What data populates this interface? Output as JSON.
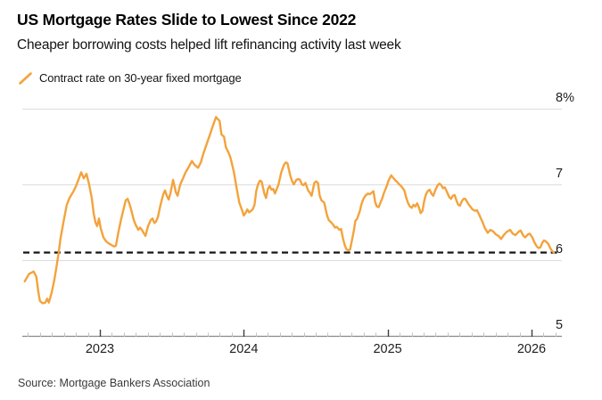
{
  "header": {
    "title": "US Mortgage Rates Slide to Lowest Since 2022",
    "subtitle": "Cheaper borrowing costs helped lift refinancing activity last week"
  },
  "source": "Source: Mortgage Bankers Association",
  "colors": {
    "series": "#F3A33C",
    "reference_line": "#141414",
    "grid": "#DCDCDC",
    "axis_line": "#8A8A8A",
    "minor_tick": "#C3C3C3",
    "major_tick": "#3F3F3F"
  },
  "chart_data": {
    "type": "line",
    "title": "US Mortgage Rates Slide to Lowest Since 2022",
    "subtitle": "Cheaper borrowing costs helped lift refinancing activity last week",
    "legend_position": "top-left",
    "grid": "horizontal",
    "y_axis": {
      "unit": "%",
      "range": [
        5,
        8
      ],
      "ticks": [
        5,
        6,
        7,
        8
      ],
      "tick_labels": [
        "5",
        "6",
        "7",
        "8%"
      ],
      "side": "right"
    },
    "x_axis": {
      "range": [
        2022.461,
        2026.211
      ],
      "ticks": [
        2023,
        2024,
        2025,
        2026
      ],
      "tick_labels": [
        "2023",
        "2024",
        "2025",
        "2026"
      ],
      "minor_tick_interval": "month"
    },
    "reference_line": {
      "value": 6.1,
      "style": "dashed",
      "color": "#141414"
    },
    "series": [
      {
        "name": "Contract rate on 30-year fixed mortgage",
        "color": "#F3A33C",
        "points": [
          [
            2022.478,
            5.72
          ],
          [
            2022.509,
            5.82
          ],
          [
            2022.54,
            5.85
          ],
          [
            2022.559,
            5.78
          ],
          [
            2022.571,
            5.6
          ],
          [
            2022.584,
            5.46
          ],
          [
            2022.603,
            5.43
          ],
          [
            2022.621,
            5.44
          ],
          [
            2022.634,
            5.49
          ],
          [
            2022.646,
            5.44
          ],
          [
            2022.665,
            5.57
          ],
          [
            2022.683,
            5.73
          ],
          [
            2022.696,
            5.88
          ],
          [
            2022.714,
            6.1
          ],
          [
            2022.727,
            6.29
          ],
          [
            2022.752,
            6.55
          ],
          [
            2022.77,
            6.73
          ],
          [
            2022.789,
            6.82
          ],
          [
            2022.814,
            6.9
          ],
          [
            2022.832,
            6.97
          ],
          [
            2022.851,
            7.06
          ],
          [
            2022.87,
            7.16
          ],
          [
            2022.888,
            7.08
          ],
          [
            2022.907,
            7.14
          ],
          [
            2022.925,
            7.0
          ],
          [
            2022.944,
            6.82
          ],
          [
            2022.957,
            6.62
          ],
          [
            2022.969,
            6.5
          ],
          [
            2022.981,
            6.45
          ],
          [
            2022.994,
            6.55
          ],
          [
            2023.006,
            6.42
          ],
          [
            2023.025,
            6.3
          ],
          [
            2023.043,
            6.25
          ],
          [
            2023.062,
            6.22
          ],
          [
            2023.081,
            6.2
          ],
          [
            2023.099,
            6.18
          ],
          [
            2023.112,
            6.19
          ],
          [
            2023.13,
            6.38
          ],
          [
            2023.149,
            6.55
          ],
          [
            2023.168,
            6.7
          ],
          [
            2023.18,
            6.79
          ],
          [
            2023.193,
            6.81
          ],
          [
            2023.205,
            6.75
          ],
          [
            2023.217,
            6.67
          ],
          [
            2023.236,
            6.53
          ],
          [
            2023.248,
            6.47
          ],
          [
            2023.267,
            6.4
          ],
          [
            2023.28,
            6.43
          ],
          [
            2023.292,
            6.4
          ],
          [
            2023.304,
            6.36
          ],
          [
            2023.317,
            6.32
          ],
          [
            2023.335,
            6.45
          ],
          [
            2023.354,
            6.53
          ],
          [
            2023.366,
            6.55
          ],
          [
            2023.379,
            6.49
          ],
          [
            2023.391,
            6.51
          ],
          [
            2023.404,
            6.57
          ],
          [
            2023.422,
            6.73
          ],
          [
            2023.441,
            6.87
          ],
          [
            2023.453,
            6.92
          ],
          [
            2023.466,
            6.85
          ],
          [
            2023.478,
            6.8
          ],
          [
            2023.491,
            6.89
          ],
          [
            2023.509,
            7.06
          ],
          [
            2023.528,
            6.9
          ],
          [
            2023.54,
            6.85
          ],
          [
            2023.559,
            7.0
          ],
          [
            2023.578,
            7.08
          ],
          [
            2023.596,
            7.16
          ],
          [
            2023.621,
            7.24
          ],
          [
            2023.64,
            7.31
          ],
          [
            2023.658,
            7.26
          ],
          [
            2023.683,
            7.22
          ],
          [
            2023.702,
            7.29
          ],
          [
            2023.72,
            7.41
          ],
          [
            2023.745,
            7.55
          ],
          [
            2023.764,
            7.65
          ],
          [
            2023.783,
            7.76
          ],
          [
            2023.807,
            7.89
          ],
          [
            2023.82,
            7.86
          ],
          [
            2023.832,
            7.84
          ],
          [
            2023.845,
            7.66
          ],
          [
            2023.863,
            7.63
          ],
          [
            2023.876,
            7.49
          ],
          [
            2023.894,
            7.42
          ],
          [
            2023.907,
            7.36
          ],
          [
            2023.932,
            7.16
          ],
          [
            2023.95,
            6.96
          ],
          [
            2023.969,
            6.76
          ],
          [
            2023.988,
            6.66
          ],
          [
            2024.0,
            6.59
          ],
          [
            2024.012,
            6.62
          ],
          [
            2024.025,
            6.67
          ],
          [
            2024.037,
            6.63
          ],
          [
            2024.05,
            6.65
          ],
          [
            2024.062,
            6.67
          ],
          [
            2024.075,
            6.73
          ],
          [
            2024.087,
            6.91
          ],
          [
            2024.099,
            7.0
          ],
          [
            2024.112,
            7.05
          ],
          [
            2024.124,
            7.04
          ],
          [
            2024.143,
            6.88
          ],
          [
            2024.155,
            6.82
          ],
          [
            2024.168,
            6.94
          ],
          [
            2024.18,
            6.98
          ],
          [
            2024.193,
            6.93
          ],
          [
            2024.205,
            6.94
          ],
          [
            2024.217,
            6.88
          ],
          [
            2024.242,
            7.0
          ],
          [
            2024.261,
            7.16
          ],
          [
            2024.28,
            7.26
          ],
          [
            2024.292,
            7.29
          ],
          [
            2024.304,
            7.28
          ],
          [
            2024.323,
            7.12
          ],
          [
            2024.335,
            7.05
          ],
          [
            2024.348,
            7.0
          ],
          [
            2024.366,
            7.06
          ],
          [
            2024.379,
            7.07
          ],
          [
            2024.391,
            7.06
          ],
          [
            2024.404,
            7.0
          ],
          [
            2024.416,
            6.99
          ],
          [
            2024.429,
            7.02
          ],
          [
            2024.447,
            6.92
          ],
          [
            2024.46,
            6.89
          ],
          [
            2024.472,
            6.85
          ],
          [
            2024.491,
            7.02
          ],
          [
            2024.503,
            7.04
          ],
          [
            2024.516,
            7.02
          ],
          [
            2024.528,
            6.85
          ],
          [
            2024.54,
            6.79
          ],
          [
            2024.559,
            6.76
          ],
          [
            2024.578,
            6.6
          ],
          [
            2024.59,
            6.53
          ],
          [
            2024.602,
            6.51
          ],
          [
            2024.621,
            6.47
          ],
          [
            2024.634,
            6.43
          ],
          [
            2024.646,
            6.44
          ],
          [
            2024.665,
            6.4
          ],
          [
            2024.677,
            6.41
          ],
          [
            2024.689,
            6.29
          ],
          [
            2024.702,
            6.2
          ],
          [
            2024.714,
            6.14
          ],
          [
            2024.727,
            6.13
          ],
          [
            2024.739,
            6.14
          ],
          [
            2024.752,
            6.26
          ],
          [
            2024.764,
            6.38
          ],
          [
            2024.776,
            6.52
          ],
          [
            2024.789,
            6.55
          ],
          [
            2024.807,
            6.65
          ],
          [
            2024.82,
            6.75
          ],
          [
            2024.832,
            6.81
          ],
          [
            2024.845,
            6.85
          ],
          [
            2024.863,
            6.88
          ],
          [
            2024.876,
            6.87
          ],
          [
            2024.888,
            6.89
          ],
          [
            2024.901,
            6.91
          ],
          [
            2024.913,
            6.77
          ],
          [
            2024.925,
            6.71
          ],
          [
            2024.938,
            6.7
          ],
          [
            2024.95,
            6.76
          ],
          [
            2024.963,
            6.82
          ],
          [
            2024.975,
            6.89
          ],
          [
            2024.994,
            6.98
          ],
          [
            2025.006,
            7.05
          ],
          [
            2025.025,
            7.12
          ],
          [
            2025.037,
            7.09
          ],
          [
            2025.05,
            7.06
          ],
          [
            2025.062,
            7.04
          ],
          [
            2025.081,
            7.0
          ],
          [
            2025.093,
            6.98
          ],
          [
            2025.106,
            6.95
          ],
          [
            2025.118,
            6.91
          ],
          [
            2025.13,
            6.82
          ],
          [
            2025.143,
            6.75
          ],
          [
            2025.155,
            6.71
          ],
          [
            2025.168,
            6.69
          ],
          [
            2025.18,
            6.73
          ],
          [
            2025.193,
            6.71
          ],
          [
            2025.205,
            6.75
          ],
          [
            2025.217,
            6.7
          ],
          [
            2025.23,
            6.62
          ],
          [
            2025.242,
            6.65
          ],
          [
            2025.255,
            6.79
          ],
          [
            2025.267,
            6.87
          ],
          [
            2025.279,
            6.91
          ],
          [
            2025.292,
            6.93
          ],
          [
            2025.304,
            6.88
          ],
          [
            2025.317,
            6.85
          ],
          [
            2025.335,
            6.94
          ],
          [
            2025.348,
            6.99
          ],
          [
            2025.36,
            7.01
          ],
          [
            2025.373,
            6.99
          ],
          [
            2025.385,
            6.95
          ],
          [
            2025.398,
            6.96
          ],
          [
            2025.41,
            6.91
          ],
          [
            2025.429,
            6.83
          ],
          [
            2025.441,
            6.81
          ],
          [
            2025.453,
            6.85
          ],
          [
            2025.466,
            6.86
          ],
          [
            2025.478,
            6.79
          ],
          [
            2025.491,
            6.73
          ],
          [
            2025.503,
            6.72
          ],
          [
            2025.516,
            6.78
          ],
          [
            2025.528,
            6.81
          ],
          [
            2025.54,
            6.81
          ],
          [
            2025.553,
            6.77
          ],
          [
            2025.565,
            6.73
          ],
          [
            2025.578,
            6.7
          ],
          [
            2025.59,
            6.67
          ],
          [
            2025.609,
            6.65
          ],
          [
            2025.621,
            6.66
          ],
          [
            2025.634,
            6.61
          ],
          [
            2025.646,
            6.56
          ],
          [
            2025.658,
            6.51
          ],
          [
            2025.677,
            6.42
          ],
          [
            2025.696,
            6.36
          ],
          [
            2025.714,
            6.4
          ],
          [
            2025.733,
            6.38
          ],
          [
            2025.752,
            6.34
          ],
          [
            2025.77,
            6.32
          ],
          [
            2025.789,
            6.28
          ],
          [
            2025.807,
            6.33
          ],
          [
            2025.826,
            6.37
          ],
          [
            2025.851,
            6.4
          ],
          [
            2025.87,
            6.35
          ],
          [
            2025.888,
            6.33
          ],
          [
            2025.913,
            6.38
          ],
          [
            2025.925,
            6.39
          ],
          [
            2025.944,
            6.32
          ],
          [
            2025.957,
            6.3
          ],
          [
            2025.975,
            6.34
          ],
          [
            2025.988,
            6.35
          ],
          [
            2026.006,
            6.3
          ],
          [
            2026.019,
            6.24
          ],
          [
            2026.037,
            6.18
          ],
          [
            2026.05,
            6.16
          ],
          [
            2026.062,
            6.17
          ],
          [
            2026.075,
            6.23
          ],
          [
            2026.087,
            6.26
          ],
          [
            2026.099,
            6.25
          ],
          [
            2026.118,
            6.21
          ],
          [
            2026.13,
            6.16
          ],
          [
            2026.143,
            6.12
          ],
          [
            2026.155,
            6.1
          ]
        ]
      }
    ]
  }
}
